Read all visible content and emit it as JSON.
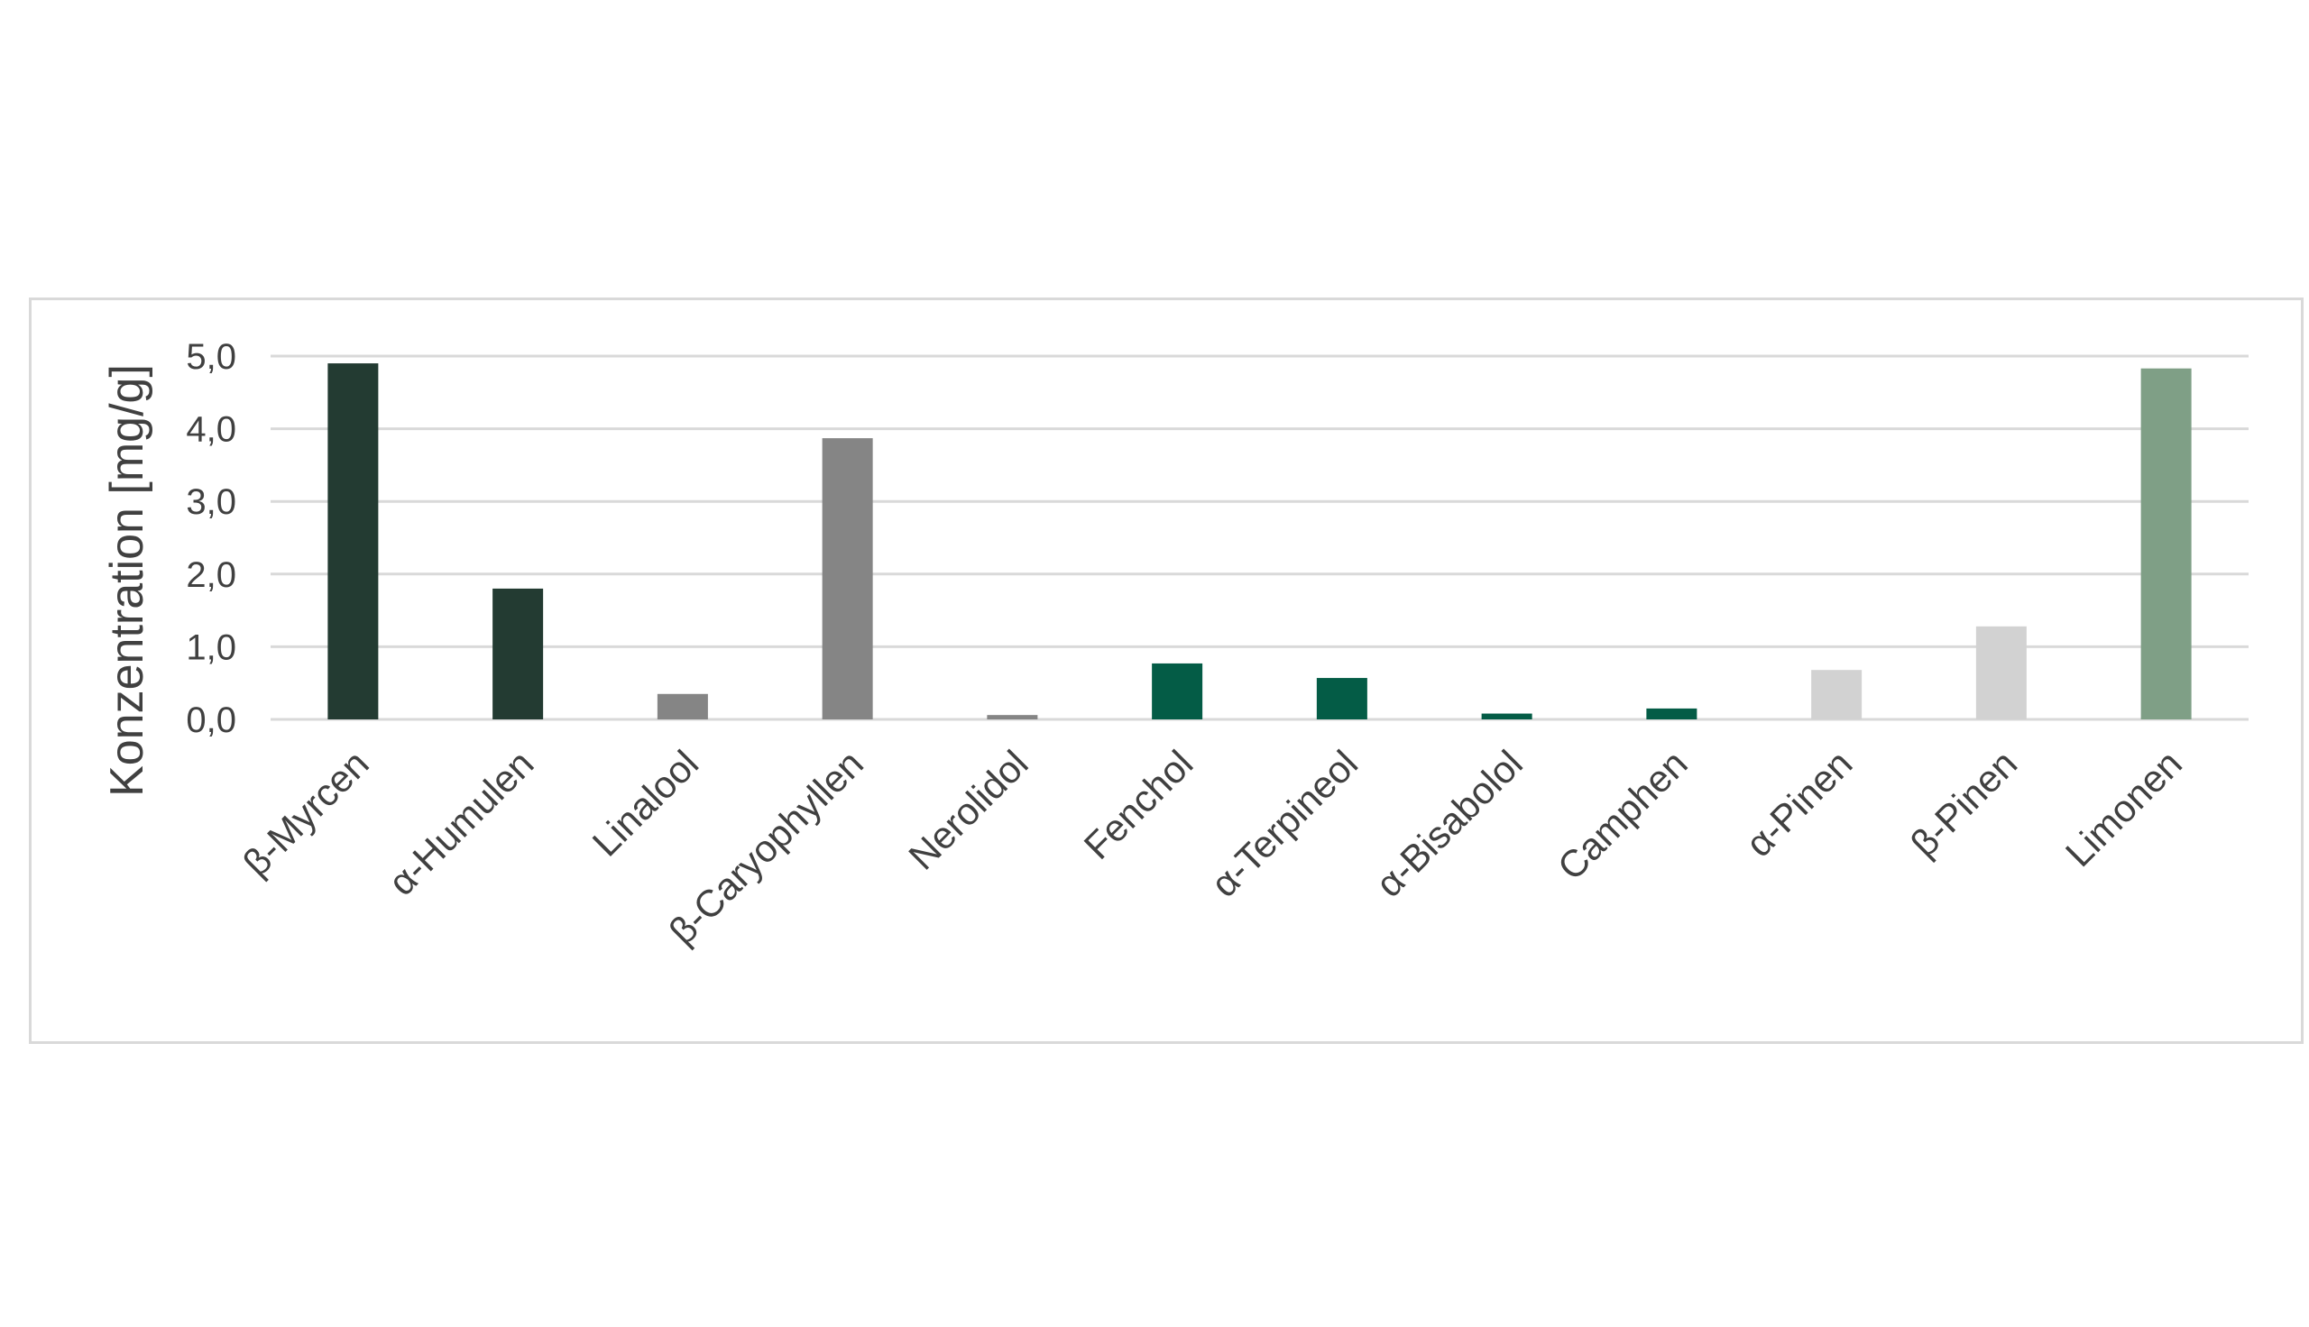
{
  "chart_data": {
    "type": "bar",
    "categories": [
      "β-Myrcen",
      "α-Humulen",
      "Linalool",
      "β-Caryophyllen",
      "Nerolidol",
      "Fenchol",
      "α-Terpineol",
      "α-Bisabolol",
      "Camphen",
      "α-Pinen",
      "β-Pinen",
      "Limonen"
    ],
    "values": [
      4.9,
      1.8,
      0.35,
      3.87,
      0.06,
      0.77,
      0.57,
      0.08,
      0.15,
      0.68,
      1.28,
      4.83
    ],
    "colors": [
      "#233b32",
      "#233b32",
      "#858585",
      "#858585",
      "#858585",
      "#045c46",
      "#045c46",
      "#045c46",
      "#045c46",
      "#d2d2d2",
      "#d2d2d2",
      "#7f9f86"
    ],
    "ylabel": "Konzentration [mg/g]",
    "ylim": [
      0,
      5
    ],
    "yticks": [
      0,
      1,
      2,
      3,
      4,
      5
    ],
    "ytick_labels": [
      "0,0",
      "1,0",
      "2,0",
      "3,0",
      "4,0",
      "5,0"
    ],
    "grid": true,
    "gridline_color": "#d9d9d9",
    "tick_label_color": "#404040"
  }
}
